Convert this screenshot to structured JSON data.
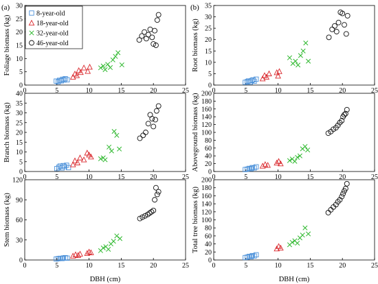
{
  "figure": {
    "xlabel": "DBH (cm)",
    "panel_labels": [
      "(a)",
      "(b)"
    ]
  },
  "legend": [
    {
      "label": "8-year-old",
      "marker": "square",
      "color": "#4a90d9"
    },
    {
      "label": "18-year-old",
      "marker": "triangle",
      "color": "#d9262b"
    },
    {
      "label": "32-year-old",
      "marker": "cross",
      "color": "#2eb82e"
    },
    {
      "label": "46-year-old",
      "marker": "circle",
      "color": "#111111"
    }
  ],
  "chart_data": [
    {
      "type": "scatter",
      "panel": "a",
      "ylabel": "Foliage biomass (kg)",
      "xlim": [
        0,
        25
      ],
      "ylim": [
        0,
        30
      ],
      "xticks": [
        0,
        5,
        10,
        15,
        20,
        25
      ],
      "yticks": [
        0,
        5,
        10,
        15,
        20,
        25,
        30
      ],
      "legend": "top-left",
      "series": [
        {
          "name": "8-year-old",
          "x": [
            4.9,
            5.2,
            5.4,
            5.7,
            5.9,
            6.1,
            6.3,
            6.6
          ],
          "y": [
            1.5,
            1.2,
            1.8,
            1.6,
            2.2,
            1.9,
            2.4,
            2.0
          ]
        },
        {
          "name": "18-year-old",
          "x": [
            7.5,
            7.8,
            8.1,
            8.4,
            8.7,
            9.2,
            9.8,
            10.1
          ],
          "y": [
            3.0,
            4.2,
            3.6,
            5.5,
            4.8,
            6.5,
            5.2,
            6.8
          ]
        },
        {
          "name": "32-year-old",
          "x": [
            11.8,
            12.2,
            12.5,
            12.9,
            13.3,
            13.7,
            14.1,
            14.5,
            15.1
          ],
          "y": [
            6.5,
            7.2,
            5.8,
            7.8,
            6.6,
            9.5,
            10.8,
            12.2,
            7.6
          ]
        },
        {
          "name": "46-year-old",
          "x": [
            17.8,
            18.2,
            18.6,
            18.9,
            19.2,
            19.5,
            19.8,
            20.0,
            20.2,
            20.4,
            20.6,
            20.8
          ],
          "y": [
            17.0,
            18.5,
            20.0,
            17.5,
            19.0,
            21.0,
            18.0,
            15.5,
            20.5,
            15.0,
            24.5,
            26.5
          ]
        }
      ]
    },
    {
      "type": "scatter",
      "panel": "b",
      "ylabel": "Root biomass (kg)",
      "xlim": [
        0,
        25
      ],
      "ylim": [
        0,
        35
      ],
      "xticks": [
        0,
        5,
        10,
        15,
        20,
        25
      ],
      "yticks": [
        0,
        5,
        10,
        15,
        20,
        25,
        30,
        35
      ],
      "series": [
        {
          "name": "8-year-old",
          "x": [
            4.9,
            5.2,
            5.4,
            5.7,
            5.9,
            6.1,
            6.3,
            6.6
          ],
          "y": [
            1.2,
            1.5,
            1.8,
            1.3,
            2.0,
            2.3,
            1.7,
            2.6
          ]
        },
        {
          "name": "18-year-old",
          "x": [
            7.6,
            7.9,
            8.2,
            8.6,
            9.8,
            10.0,
            10.2
          ],
          "y": [
            2.8,
            4.2,
            3.5,
            5.0,
            5.5,
            4.0,
            6.0
          ]
        },
        {
          "name": "32-year-old",
          "x": [
            11.8,
            12.3,
            12.7,
            13.1,
            13.5,
            13.9,
            14.3,
            14.7
          ],
          "y": [
            12.0,
            9.5,
            10.5,
            8.8,
            13.0,
            15.0,
            18.5,
            10.5
          ]
        },
        {
          "name": "46-year-old",
          "x": [
            17.9,
            18.4,
            18.8,
            19.1,
            19.4,
            19.7,
            20.0,
            20.3,
            20.6,
            20.8
          ],
          "y": [
            21.0,
            24.5,
            26.0,
            23.5,
            27.5,
            32.0,
            31.5,
            26.5,
            22.5,
            30.5
          ]
        }
      ]
    },
    {
      "type": "scatter",
      "panel": "a",
      "ylabel": "Branch biomass (kg)",
      "xlim": [
        0,
        25
      ],
      "ylim": [
        0,
        40
      ],
      "xticks": [
        0,
        5,
        10,
        15,
        20,
        25
      ],
      "yticks": [
        0,
        5,
        10,
        15,
        20,
        25,
        30,
        35,
        40
      ],
      "series": [
        {
          "name": "8-year-old",
          "x": [
            5.0,
            5.3,
            5.5,
            5.8,
            6.0,
            6.2,
            6.5,
            6.8
          ],
          "y": [
            1.5,
            2.2,
            2.8,
            1.8,
            3.0,
            2.5,
            3.2,
            2.0
          ]
        },
        {
          "name": "18-year-old",
          "x": [
            7.5,
            7.8,
            8.2,
            8.6,
            9.2,
            9.7,
            10.0,
            10.3
          ],
          "y": [
            3.5,
            5.5,
            4.5,
            7.0,
            6.0,
            9.5,
            8.5,
            7.5
          ]
        },
        {
          "name": "32-year-old",
          "x": [
            11.8,
            12.2,
            12.5,
            13.1,
            13.5,
            13.9,
            14.3,
            14.7
          ],
          "y": [
            6.5,
            7.0,
            6.0,
            12.5,
            10.5,
            20.5,
            18.5,
            11.5
          ]
        },
        {
          "name": "46-year-old",
          "x": [
            17.9,
            18.4,
            18.8,
            19.2,
            19.5,
            19.8,
            20.0,
            20.3,
            20.5,
            20.8
          ],
          "y": [
            17.0,
            18.5,
            20.0,
            24.5,
            29.0,
            27.0,
            23.0,
            26.5,
            31.0,
            33.5
          ]
        }
      ]
    },
    {
      "type": "scatter",
      "panel": "b",
      "ylabel": "Aboveground biomass (kg)",
      "xlim": [
        0,
        25
      ],
      "ylim": [
        0,
        200
      ],
      "xticks": [
        0,
        5,
        10,
        15,
        20,
        25
      ],
      "yticks": [
        0,
        20,
        40,
        60,
        80,
        100,
        120,
        140,
        160,
        180,
        200
      ],
      "series": [
        {
          "name": "8-year-old",
          "x": [
            4.9,
            5.2,
            5.5,
            5.8,
            6.0,
            6.3,
            6.6
          ],
          "y": [
            5,
            6,
            8,
            7,
            10,
            9,
            12
          ]
        },
        {
          "name": "18-year-old",
          "x": [
            7.6,
            8.0,
            8.4,
            9.8,
            10.1,
            10.4
          ],
          "y": [
            14,
            18,
            16,
            22,
            26,
            20
          ]
        },
        {
          "name": "32-year-old",
          "x": [
            11.8,
            12.2,
            12.6,
            13.0,
            13.4,
            13.8,
            14.2,
            14.6
          ],
          "y": [
            28,
            32,
            26,
            36,
            40,
            58,
            64,
            55
          ]
        },
        {
          "name": "46-year-old",
          "x": [
            17.8,
            18.2,
            18.6,
            19.0,
            19.3,
            19.6,
            19.9,
            20.1,
            20.3,
            20.5,
            20.7
          ],
          "y": [
            98,
            102,
            108,
            112,
            118,
            125,
            130,
            140,
            145,
            148,
            158
          ]
        }
      ]
    },
    {
      "type": "scatter",
      "panel": "a",
      "ylabel": "Stem biomass (kg)",
      "xlim": [
        0,
        25
      ],
      "ylim": [
        0,
        120
      ],
      "xticks": [
        0,
        5,
        10,
        15,
        20,
        25
      ],
      "yticks": [
        0,
        30,
        60,
        90,
        120
      ],
      "series": [
        {
          "name": "8-year-old",
          "x": [
            4.9,
            5.2,
            5.5,
            5.8,
            6.0,
            6.3,
            6.6
          ],
          "y": [
            1.5,
            2.0,
            2.5,
            2.2,
            3.0,
            3.5,
            2.8
          ]
        },
        {
          "name": "18-year-old",
          "x": [
            7.5,
            7.9,
            8.3,
            8.6,
            9.7,
            10.0,
            10.3
          ],
          "y": [
            6,
            8,
            7,
            9,
            10,
            12,
            11
          ]
        },
        {
          "name": "32-year-old",
          "x": [
            11.8,
            12.2,
            12.6,
            13.0,
            13.4,
            13.8,
            14.3,
            14.8
          ],
          "y": [
            14,
            18,
            20,
            16,
            24,
            28,
            36,
            32
          ]
        },
        {
          "name": "46-year-old",
          "x": [
            17.9,
            18.3,
            18.7,
            19.1,
            19.4,
            19.7,
            20.0,
            20.2,
            20.4,
            20.6,
            20.8
          ],
          "y": [
            62,
            64,
            66,
            68,
            70,
            72,
            74,
            90,
            108,
            98,
            102
          ]
        }
      ]
    },
    {
      "type": "scatter",
      "panel": "b",
      "ylabel": "Total tree biomass (kg)",
      "xlim": [
        0,
        25
      ],
      "ylim": [
        0,
        200
      ],
      "xticks": [
        0,
        5,
        10,
        15,
        20,
        25
      ],
      "yticks": [
        0,
        20,
        40,
        60,
        80,
        100,
        120,
        140,
        160,
        180,
        200
      ],
      "series": [
        {
          "name": "8-year-old",
          "x": [
            4.9,
            5.2,
            5.5,
            5.8,
            6.0,
            6.3,
            6.6
          ],
          "y": [
            6,
            7,
            9,
            8,
            11,
            10,
            13
          ]
        },
        {
          "name": "18-year-old",
          "x": [
            9.8,
            10.1,
            10.4
          ],
          "y": [
            28,
            34,
            30
          ]
        },
        {
          "name": "32-year-old",
          "x": [
            11.8,
            12.2,
            12.6,
            13.0,
            13.4,
            13.8,
            14.2,
            14.7
          ],
          "y": [
            38,
            44,
            48,
            42,
            55,
            62,
            80,
            65
          ]
        },
        {
          "name": "46-year-old",
          "x": [
            17.8,
            18.2,
            18.6,
            19.0,
            19.3,
            19.6,
            19.9,
            20.1,
            20.3,
            20.5,
            20.7
          ],
          "y": [
            118,
            125,
            132,
            138,
            145,
            150,
            158,
            165,
            172,
            178,
            190
          ]
        }
      ]
    }
  ]
}
